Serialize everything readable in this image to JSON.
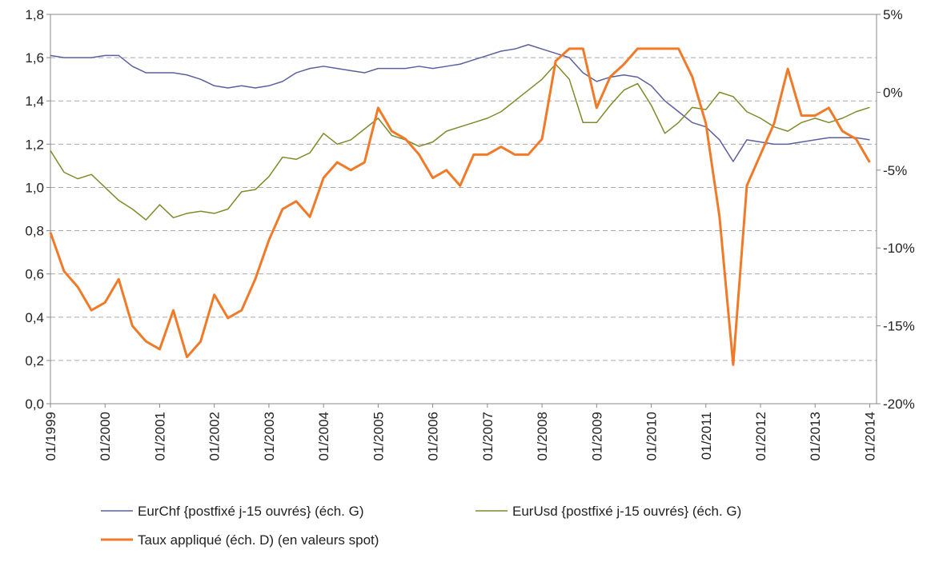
{
  "chart_data": {
    "type": "line",
    "categories": [
      "01/1999",
      null,
      null,
      null,
      "01/2000",
      null,
      null,
      null,
      "01/2001",
      null,
      null,
      null,
      "01/2002",
      null,
      null,
      null,
      "01/2003",
      null,
      null,
      null,
      "01/2004",
      null,
      null,
      null,
      "01/2005",
      null,
      null,
      null,
      "01/2006",
      null,
      null,
      null,
      "01/2007",
      null,
      null,
      null,
      "01/2008",
      null,
      null,
      null,
      "01/2009",
      null,
      null,
      null,
      "01/2010",
      null,
      null,
      null,
      "01/2011",
      null,
      null,
      null,
      "01/2012",
      null,
      null,
      null,
      "01/2013",
      null,
      null,
      null,
      "01/2014"
    ],
    "series": [
      {
        "name": "EurChf {postfixé j-15 ouvrés} (éch. G)",
        "color": "#5c5f9e",
        "values": [
          1.61,
          1.6,
          1.6,
          1.6,
          1.61,
          1.61,
          1.56,
          1.53,
          1.53,
          1.53,
          1.52,
          1.5,
          1.47,
          1.46,
          1.47,
          1.46,
          1.47,
          1.49,
          1.53,
          1.55,
          1.56,
          1.55,
          1.54,
          1.53,
          1.55,
          1.55,
          1.55,
          1.56,
          1.55,
          1.56,
          1.57,
          1.59,
          1.61,
          1.63,
          1.64,
          1.66,
          1.64,
          1.62,
          1.6,
          1.53,
          1.49,
          1.51,
          1.52,
          1.51,
          1.47,
          1.4,
          1.35,
          1.3,
          1.28,
          1.22,
          1.12,
          1.22,
          1.21,
          1.2,
          1.2,
          1.21,
          1.22,
          1.23,
          1.23,
          1.23,
          1.22
        ]
      },
      {
        "name": "EurUsd {postfixé j-15 ouvrés} (éch. G)",
        "color": "#7f8a2a",
        "values": [
          1.17,
          1.07,
          1.04,
          1.06,
          1.0,
          0.94,
          0.9,
          0.85,
          0.92,
          0.86,
          0.88,
          0.89,
          0.88,
          0.9,
          0.98,
          0.99,
          1.05,
          1.14,
          1.13,
          1.16,
          1.25,
          1.2,
          1.22,
          1.27,
          1.32,
          1.24,
          1.22,
          1.19,
          1.21,
          1.26,
          1.28,
          1.3,
          1.32,
          1.35,
          1.4,
          1.45,
          1.5,
          1.57,
          1.5,
          1.3,
          1.3,
          1.38,
          1.45,
          1.48,
          1.38,
          1.25,
          1.3,
          1.37,
          1.36,
          1.44,
          1.42,
          1.35,
          1.32,
          1.28,
          1.26,
          1.3,
          1.32,
          1.3,
          1.32,
          1.35,
          1.37
        ]
      },
      {
        "name": "Taux appliqué (éch. D) (en valeurs spot)",
        "color": "#f07a28",
        "axis": "y2",
        "values": [
          -9,
          -11.5,
          -12.5,
          -14,
          -13.5,
          -12,
          -15,
          -16,
          -16.5,
          -14,
          -17,
          -16,
          -13,
          -14.5,
          -14,
          -12,
          -9.5,
          -7.5,
          -7,
          -8,
          -5.5,
          -4.5,
          -5,
          -4.5,
          -1,
          -2.5,
          -3,
          -4,
          -5.5,
          -5,
          -6,
          -4,
          -4,
          -3.5,
          -4,
          -4,
          -3,
          2,
          2.8,
          2.8,
          -1,
          1,
          1.8,
          2.8,
          2.8,
          2.8,
          2.8,
          1,
          -2,
          -8,
          -17.5,
          -6,
          -4,
          -2,
          1.5,
          -1.5,
          -1.5,
          -1,
          -2.5,
          -3,
          -4.5
        ]
      }
    ],
    "ylim": [
      0,
      1.8
    ],
    "yticks": [
      {
        "value": 0,
        "label": "0,0"
      },
      {
        "value": 0.2,
        "label": "0,2"
      },
      {
        "value": 0.4,
        "label": "0,4"
      },
      {
        "value": 0.6,
        "label": "0,6"
      },
      {
        "value": 0.8,
        "label": "0,8"
      },
      {
        "value": 1.0,
        "label": "1,0"
      },
      {
        "value": 1.2,
        "label": "1,2"
      },
      {
        "value": 1.4,
        "label": "1,4"
      },
      {
        "value": 1.6,
        "label": "1,6"
      },
      {
        "value": 1.8,
        "label": "1,8"
      }
    ],
    "y2lim": [
      -20,
      5
    ],
    "y2ticks": [
      {
        "value": -20,
        "label": "-20%"
      },
      {
        "value": -15,
        "label": "-15%"
      },
      {
        "value": -10,
        "label": "-10%"
      },
      {
        "value": -5,
        "label": "-5%"
      },
      {
        "value": 0,
        "label": "0%"
      },
      {
        "value": 5,
        "label": "5%"
      }
    ],
    "grid": true
  }
}
